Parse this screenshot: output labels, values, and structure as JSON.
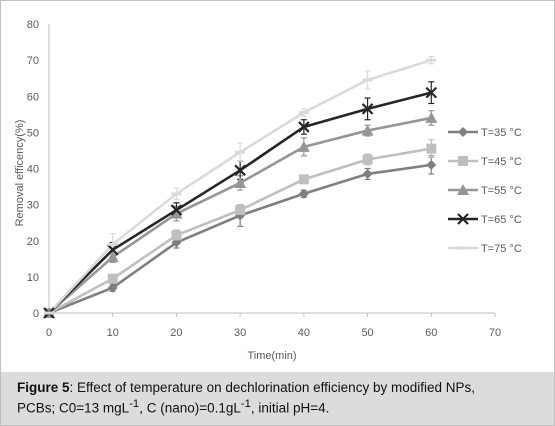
{
  "caption": {
    "label": "Figure 5",
    "text_line1": ": Effect of temperature on dechlorination efficiency by modified NPs,",
    "text_line2_a": "PCBs; C0=13 mgL",
    "text_line2_b": ", C (nano)=0.1gL",
    "text_line2_c": ", initial pH=4.",
    "sup": "-1"
  },
  "chart_data": {
    "type": "line",
    "title": "",
    "xlabel": "Time(min)",
    "ylabel": "Removal efficency(%)",
    "xlim": [
      0,
      70
    ],
    "ylim": [
      0,
      80
    ],
    "xticks": [
      0,
      10,
      20,
      30,
      40,
      50,
      60,
      70
    ],
    "yticks": [
      0,
      10,
      20,
      30,
      40,
      50,
      60,
      70,
      80
    ],
    "grid": "none",
    "legend_position": "right",
    "x": [
      0,
      10,
      20,
      30,
      40,
      50,
      60
    ],
    "series": [
      {
        "name": "T=35 °C",
        "marker": "diamond",
        "color": "#7f7f7f",
        "values": [
          0,
          7,
          19.5,
          27,
          33,
          38.5,
          41
        ],
        "err": [
          0,
          1,
          1.5,
          3,
          1,
          1.5,
          2.5
        ]
      },
      {
        "name": "T=45 °C",
        "marker": "square",
        "color": "#bfbfbf",
        "values": [
          0,
          9.5,
          21.5,
          28.5,
          37,
          42.5,
          45.5
        ],
        "err": [
          0,
          1,
          1.5,
          1.5,
          1,
          1.5,
          2.5
        ]
      },
      {
        "name": "T=55 °C",
        "marker": "triangle",
        "color": "#969696",
        "values": [
          0,
          15.5,
          27.5,
          36,
          46,
          50.5,
          54
        ],
        "err": [
          0,
          1.5,
          2,
          2,
          2.5,
          1.5,
          2
        ]
      },
      {
        "name": "T=65 °C",
        "marker": "x",
        "color": "#262626",
        "values": [
          0,
          17.5,
          28.5,
          39.5,
          51.5,
          56.5,
          61
        ],
        "err": [
          0,
          2,
          2,
          2.5,
          2,
          3,
          3
        ]
      },
      {
        "name": "T=75 °C",
        "marker": "dash",
        "color": "#dadada",
        "values": [
          0,
          19,
          33,
          44.5,
          55.5,
          64.5,
          70
        ],
        "err": [
          0,
          3,
          1.5,
          2.5,
          1,
          2.5,
          1
        ]
      }
    ]
  }
}
